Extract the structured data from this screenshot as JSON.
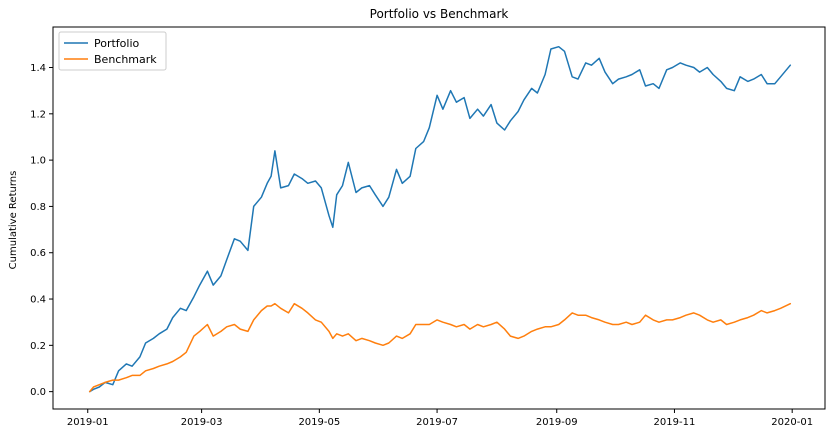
{
  "chart_data": {
    "type": "line",
    "title": "Portfolio vs Benchmark",
    "xlabel": "",
    "ylabel": "Cumulative Returns",
    "xlim": [
      "2018-12-14",
      "2020-01-18"
    ],
    "ylim": [
      -0.075,
      1.575
    ],
    "grid": false,
    "legend_position": "top-left",
    "x_ticks": [
      "2019-01",
      "2019-03",
      "2019-05",
      "2019-07",
      "2019-09",
      "2019-11",
      "2020-01"
    ],
    "y_ticks": [
      0.0,
      0.2,
      0.4,
      0.6,
      0.8,
      1.0,
      1.2,
      1.4
    ],
    "y_tick_labels": [
      "0.0",
      "0.2",
      "0.4",
      "0.6",
      "0.8",
      "1.0",
      "1.2",
      "1.4"
    ],
    "series": [
      {
        "name": "Portfolio",
        "color": "#1f77b4",
        "x": [
          "2019-01-02",
          "2019-01-04",
          "2019-01-07",
          "2019-01-10",
          "2019-01-14",
          "2019-01-17",
          "2019-01-21",
          "2019-01-24",
          "2019-01-28",
          "2019-01-31",
          "2019-02-04",
          "2019-02-07",
          "2019-02-11",
          "2019-02-14",
          "2019-02-18",
          "2019-02-21",
          "2019-02-25",
          "2019-02-28",
          "2019-03-04",
          "2019-03-07",
          "2019-03-11",
          "2019-03-14",
          "2019-03-18",
          "2019-03-21",
          "2019-03-25",
          "2019-03-28",
          "2019-04-01",
          "2019-04-04",
          "2019-04-06",
          "2019-04-08",
          "2019-04-11",
          "2019-04-15",
          "2019-04-18",
          "2019-04-22",
          "2019-04-25",
          "2019-04-29",
          "2019-05-02",
          "2019-05-06",
          "2019-05-08",
          "2019-05-10",
          "2019-05-13",
          "2019-05-16",
          "2019-05-20",
          "2019-05-23",
          "2019-05-27",
          "2019-05-30",
          "2019-06-03",
          "2019-06-06",
          "2019-06-10",
          "2019-06-13",
          "2019-06-17",
          "2019-06-20",
          "2019-06-24",
          "2019-06-27",
          "2019-07-01",
          "2019-07-04",
          "2019-07-08",
          "2019-07-11",
          "2019-07-15",
          "2019-07-18",
          "2019-07-22",
          "2019-07-25",
          "2019-07-29",
          "2019-08-01",
          "2019-08-05",
          "2019-08-08",
          "2019-08-12",
          "2019-08-15",
          "2019-08-19",
          "2019-08-22",
          "2019-08-26",
          "2019-08-29",
          "2019-09-02",
          "2019-09-05",
          "2019-09-09",
          "2019-09-12",
          "2019-09-16",
          "2019-09-19",
          "2019-09-23",
          "2019-09-26",
          "2019-09-30",
          "2019-10-03",
          "2019-10-07",
          "2019-10-10",
          "2019-10-14",
          "2019-10-17",
          "2019-10-21",
          "2019-10-24",
          "2019-10-28",
          "2019-10-31",
          "2019-11-04",
          "2019-11-07",
          "2019-11-11",
          "2019-11-14",
          "2019-11-18",
          "2019-11-21",
          "2019-11-25",
          "2019-11-28",
          "2019-12-02",
          "2019-12-05",
          "2019-12-09",
          "2019-12-12",
          "2019-12-16",
          "2019-12-19",
          "2019-12-23",
          "2019-12-26",
          "2019-12-31"
        ],
        "y": [
          0.0,
          0.01,
          0.02,
          0.04,
          0.03,
          0.09,
          0.12,
          0.11,
          0.15,
          0.21,
          0.23,
          0.25,
          0.27,
          0.32,
          0.36,
          0.35,
          0.41,
          0.46,
          0.52,
          0.46,
          0.5,
          0.57,
          0.66,
          0.65,
          0.61,
          0.8,
          0.84,
          0.9,
          0.93,
          1.04,
          0.88,
          0.89,
          0.94,
          0.92,
          0.9,
          0.91,
          0.88,
          0.76,
          0.71,
          0.85,
          0.89,
          0.99,
          0.86,
          0.88,
          0.89,
          0.85,
          0.8,
          0.84,
          0.96,
          0.9,
          0.93,
          1.05,
          1.08,
          1.14,
          1.28,
          1.22,
          1.3,
          1.25,
          1.27,
          1.18,
          1.22,
          1.19,
          1.24,
          1.16,
          1.13,
          1.17,
          1.21,
          1.26,
          1.31,
          1.29,
          1.37,
          1.48,
          1.49,
          1.47,
          1.36,
          1.35,
          1.42,
          1.41,
          1.44,
          1.38,
          1.33,
          1.35,
          1.36,
          1.37,
          1.39,
          1.32,
          1.33,
          1.31,
          1.39,
          1.4,
          1.42,
          1.41,
          1.4,
          1.38,
          1.4,
          1.37,
          1.34,
          1.31,
          1.3,
          1.36,
          1.34,
          1.35,
          1.37,
          1.33,
          1.33,
          1.36,
          1.41
        ]
      },
      {
        "name": "Benchmark",
        "color": "#ff7f0e",
        "x": [
          "2019-01-02",
          "2019-01-04",
          "2019-01-07",
          "2019-01-10",
          "2019-01-14",
          "2019-01-17",
          "2019-01-21",
          "2019-01-24",
          "2019-01-28",
          "2019-01-31",
          "2019-02-04",
          "2019-02-07",
          "2019-02-11",
          "2019-02-14",
          "2019-02-18",
          "2019-02-21",
          "2019-02-25",
          "2019-02-28",
          "2019-03-04",
          "2019-03-07",
          "2019-03-11",
          "2019-03-14",
          "2019-03-18",
          "2019-03-21",
          "2019-03-25",
          "2019-03-28",
          "2019-04-01",
          "2019-04-04",
          "2019-04-06",
          "2019-04-08",
          "2019-04-11",
          "2019-04-15",
          "2019-04-18",
          "2019-04-22",
          "2019-04-25",
          "2019-04-29",
          "2019-05-02",
          "2019-05-06",
          "2019-05-08",
          "2019-05-10",
          "2019-05-13",
          "2019-05-16",
          "2019-05-20",
          "2019-05-23",
          "2019-05-27",
          "2019-05-30",
          "2019-06-03",
          "2019-06-06",
          "2019-06-10",
          "2019-06-13",
          "2019-06-17",
          "2019-06-20",
          "2019-06-24",
          "2019-06-27",
          "2019-07-01",
          "2019-07-04",
          "2019-07-08",
          "2019-07-11",
          "2019-07-15",
          "2019-07-18",
          "2019-07-22",
          "2019-07-25",
          "2019-07-29",
          "2019-08-01",
          "2019-08-05",
          "2019-08-08",
          "2019-08-12",
          "2019-08-15",
          "2019-08-19",
          "2019-08-22",
          "2019-08-26",
          "2019-08-29",
          "2019-09-02",
          "2019-09-05",
          "2019-09-09",
          "2019-09-12",
          "2019-09-16",
          "2019-09-19",
          "2019-09-23",
          "2019-09-26",
          "2019-09-30",
          "2019-10-03",
          "2019-10-07",
          "2019-10-10",
          "2019-10-14",
          "2019-10-17",
          "2019-10-21",
          "2019-10-24",
          "2019-10-28",
          "2019-10-31",
          "2019-11-04",
          "2019-11-07",
          "2019-11-11",
          "2019-11-14",
          "2019-11-18",
          "2019-11-21",
          "2019-11-25",
          "2019-11-28",
          "2019-12-02",
          "2019-12-05",
          "2019-12-09",
          "2019-12-12",
          "2019-12-16",
          "2019-12-19",
          "2019-12-23",
          "2019-12-26",
          "2019-12-31"
        ],
        "y": [
          0.0,
          0.02,
          0.03,
          0.04,
          0.05,
          0.05,
          0.06,
          0.07,
          0.07,
          0.09,
          0.1,
          0.11,
          0.12,
          0.13,
          0.15,
          0.17,
          0.24,
          0.26,
          0.29,
          0.24,
          0.26,
          0.28,
          0.29,
          0.27,
          0.26,
          0.31,
          0.35,
          0.37,
          0.37,
          0.38,
          0.36,
          0.34,
          0.38,
          0.36,
          0.34,
          0.31,
          0.3,
          0.26,
          0.23,
          0.25,
          0.24,
          0.25,
          0.22,
          0.23,
          0.22,
          0.21,
          0.2,
          0.21,
          0.24,
          0.23,
          0.25,
          0.29,
          0.29,
          0.29,
          0.31,
          0.3,
          0.29,
          0.28,
          0.29,
          0.27,
          0.29,
          0.28,
          0.29,
          0.3,
          0.27,
          0.24,
          0.23,
          0.24,
          0.26,
          0.27,
          0.28,
          0.28,
          0.29,
          0.31,
          0.34,
          0.33,
          0.33,
          0.32,
          0.31,
          0.3,
          0.29,
          0.29,
          0.3,
          0.29,
          0.3,
          0.33,
          0.31,
          0.3,
          0.31,
          0.31,
          0.32,
          0.33,
          0.34,
          0.33,
          0.31,
          0.3,
          0.31,
          0.29,
          0.3,
          0.31,
          0.32,
          0.33,
          0.35,
          0.34,
          0.35,
          0.36,
          0.38
        ]
      }
    ]
  }
}
